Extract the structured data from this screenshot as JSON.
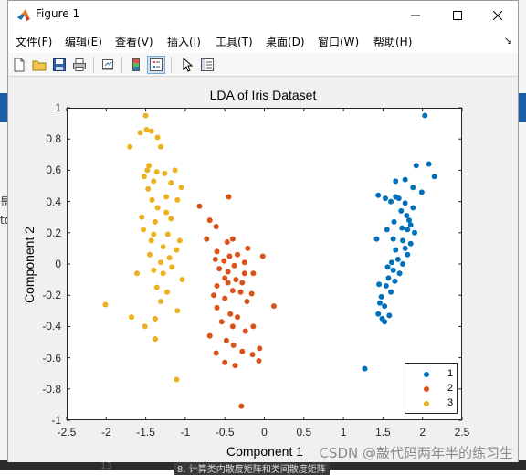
{
  "window": {
    "title": "Figure 1",
    "controls": {
      "minimize": "minimize",
      "maximize": "maximize",
      "close": "close"
    }
  },
  "menu": {
    "items": [
      "文件(F)",
      "编辑(E)",
      "查看(V)",
      "插入(I)",
      "工具(T)",
      "桌面(D)",
      "窗口(W)",
      "帮助(H)"
    ],
    "overflow": "↘"
  },
  "toolbar": {
    "tools": [
      "new-figure-icon",
      "open-file-icon",
      "save-icon",
      "print-icon",
      "link-plot-icon",
      "insert-colorbar-icon",
      "insert-legend-icon",
      "pointer-icon",
      "property-inspector-icon"
    ]
  },
  "background": {
    "left_text_1": "昰",
    "left_text_2": "to",
    "bottom_left": "13",
    "bottom_text": "8. 计算类内散度矩阵和类间散度矩阵"
  },
  "watermark": "CSDN @敲代码两年半的练习生",
  "colors": {
    "class1": "#0072BD",
    "class2": "#D95319",
    "class3": "#EDB120"
  },
  "chart_data": {
    "type": "scatter",
    "title": "LDA of Iris Dataset",
    "xlabel": "Component 1",
    "ylabel": "Component 2",
    "xlim": [
      -2.5,
      2.5
    ],
    "ylim": [
      -1,
      1
    ],
    "xticks": [
      "-2.5",
      "-2",
      "-1.5",
      "-1",
      "-0.5",
      "0",
      "0.5",
      "1",
      "1.5",
      "2",
      "2.5"
    ],
    "yticks": [
      "1",
      "0.8",
      "0.6",
      "0.4",
      "0.2",
      "0",
      "-0.2",
      "-0.4",
      "-0.6",
      "-0.8",
      "-1"
    ],
    "legend": {
      "position": "bottom-right",
      "entries": [
        "1",
        "2",
        "3"
      ]
    },
    "series": [
      {
        "name": "1",
        "color": "#0072BD",
        "points": [
          [
            2.03,
            0.95
          ],
          [
            1.92,
            0.63
          ],
          [
            2.08,
            0.64
          ],
          [
            2.15,
            0.56
          ],
          [
            1.78,
            0.54
          ],
          [
            1.66,
            0.53
          ],
          [
            1.88,
            0.49
          ],
          [
            1.44,
            0.44
          ],
          [
            1.66,
            0.43
          ],
          [
            1.7,
            0.42
          ],
          [
            1.53,
            0.42
          ],
          [
            1.99,
            0.46
          ],
          [
            1.6,
            0.4
          ],
          [
            1.78,
            0.39
          ],
          [
            1.88,
            0.36
          ],
          [
            1.73,
            0.34
          ],
          [
            1.8,
            0.31
          ],
          [
            1.83,
            0.28
          ],
          [
            1.64,
            0.27
          ],
          [
            1.85,
            0.25
          ],
          [
            1.74,
            0.23
          ],
          [
            1.55,
            0.22
          ],
          [
            1.81,
            0.22
          ],
          [
            1.9,
            0.2
          ],
          [
            1.42,
            0.16
          ],
          [
            1.63,
            0.16
          ],
          [
            1.75,
            0.15
          ],
          [
            1.85,
            0.13
          ],
          [
            1.78,
            0.1
          ],
          [
            1.66,
            0.09
          ],
          [
            1.81,
            0.06
          ],
          [
            1.69,
            0.03
          ],
          [
            1.61,
            0.01
          ],
          [
            1.75,
            0.0
          ],
          [
            1.56,
            -0.02
          ],
          [
            1.63,
            -0.04
          ],
          [
            1.71,
            -0.06
          ],
          [
            1.57,
            -0.09
          ],
          [
            1.65,
            -0.11
          ],
          [
            1.45,
            -0.13
          ],
          [
            1.54,
            -0.14
          ],
          [
            1.48,
            -0.21
          ],
          [
            1.6,
            -0.18
          ],
          [
            1.46,
            -0.25
          ],
          [
            1.52,
            -0.27
          ],
          [
            1.44,
            -0.32
          ],
          [
            1.58,
            -0.33
          ],
          [
            1.49,
            -0.35
          ],
          [
            1.52,
            -0.37
          ],
          [
            1.27,
            -0.67
          ]
        ]
      },
      {
        "name": "2",
        "color": "#D95319",
        "points": [
          [
            -0.45,
            0.43
          ],
          [
            -0.82,
            0.37
          ],
          [
            -0.69,
            0.28
          ],
          [
            -0.61,
            0.24
          ],
          [
            -0.73,
            0.16
          ],
          [
            -0.4,
            0.16
          ],
          [
            -0.47,
            0.14
          ],
          [
            -0.21,
            0.1
          ],
          [
            -0.6,
            0.08
          ],
          [
            -0.34,
            0.06
          ],
          [
            -0.44,
            0.05
          ],
          [
            -0.62,
            0.03
          ],
          [
            -0.51,
            0.02
          ],
          [
            -0.25,
            0.01
          ],
          [
            -0.02,
            0.05
          ],
          [
            -0.38,
            -0.01
          ],
          [
            -0.57,
            -0.03
          ],
          [
            -0.46,
            -0.05
          ],
          [
            -0.25,
            -0.06
          ],
          [
            -0.14,
            -0.06
          ],
          [
            -0.5,
            -0.09
          ],
          [
            -0.36,
            -0.1
          ],
          [
            -0.28,
            -0.12
          ],
          [
            -0.46,
            -0.12
          ],
          [
            -0.6,
            -0.14
          ],
          [
            -0.4,
            -0.17
          ],
          [
            -0.3,
            -0.18
          ],
          [
            -0.16,
            -0.19
          ],
          [
            -0.64,
            -0.2
          ],
          [
            -0.5,
            -0.22
          ],
          [
            -0.22,
            -0.24
          ],
          [
            0.12,
            -0.27
          ],
          [
            -0.6,
            -0.28
          ],
          [
            -0.43,
            -0.32
          ],
          [
            -0.34,
            -0.34
          ],
          [
            -0.54,
            -0.37
          ],
          [
            -0.4,
            -0.4
          ],
          [
            -0.24,
            -0.43
          ],
          [
            -0.14,
            -0.4
          ],
          [
            -0.69,
            -0.46
          ],
          [
            -0.48,
            -0.49
          ],
          [
            -0.39,
            -0.52
          ],
          [
            -0.06,
            -0.54
          ],
          [
            -0.61,
            -0.57
          ],
          [
            -0.28,
            -0.56
          ],
          [
            -0.15,
            -0.58
          ],
          [
            -0.5,
            -0.63
          ],
          [
            -0.07,
            -0.62
          ],
          [
            -0.37,
            -0.65
          ],
          [
            -0.29,
            -0.91
          ]
        ]
      },
      {
        "name": "3",
        "color": "#EDB120",
        "points": [
          [
            -1.5,
            0.95
          ],
          [
            -1.49,
            0.86
          ],
          [
            -1.43,
            0.85
          ],
          [
            -1.35,
            0.81
          ],
          [
            -1.57,
            0.84
          ],
          [
            -1.7,
            0.75
          ],
          [
            -1.31,
            0.75
          ],
          [
            -1.46,
            0.63
          ],
          [
            -1.36,
            0.59
          ],
          [
            -1.48,
            0.6
          ],
          [
            -1.26,
            0.58
          ],
          [
            -1.52,
            0.56
          ],
          [
            -1.13,
            0.6
          ],
          [
            -1.4,
            0.53
          ],
          [
            -1.18,
            0.52
          ],
          [
            -1.47,
            0.48
          ],
          [
            -1.05,
            0.49
          ],
          [
            -1.24,
            0.43
          ],
          [
            -1.42,
            0.41
          ],
          [
            -1.1,
            0.41
          ],
          [
            -1.35,
            0.36
          ],
          [
            -1.24,
            0.33
          ],
          [
            -1.55,
            0.3
          ],
          [
            -1.38,
            0.27
          ],
          [
            -1.18,
            0.29
          ],
          [
            -1.53,
            0.22
          ],
          [
            -1.4,
            0.19
          ],
          [
            -1.22,
            0.19
          ],
          [
            -1.43,
            0.15
          ],
          [
            -1.07,
            0.15
          ],
          [
            -1.28,
            0.11
          ],
          [
            -1.11,
            0.09
          ],
          [
            -1.45,
            0.06
          ],
          [
            -1.2,
            0.04
          ],
          [
            -1.31,
            0.01
          ],
          [
            -1.17,
            -0.02
          ],
          [
            -1.4,
            -0.04
          ],
          [
            -1.61,
            -0.06
          ],
          [
            -1.28,
            -0.06
          ],
          [
            -1.04,
            -0.1
          ],
          [
            -1.36,
            -0.15
          ],
          [
            -1.23,
            -0.18
          ],
          [
            -2.01,
            -0.26
          ],
          [
            -1.31,
            -0.24
          ],
          [
            -1.1,
            -0.3
          ],
          [
            -1.68,
            -0.34
          ],
          [
            -1.38,
            -0.35
          ],
          [
            -1.51,
            -0.4
          ],
          [
            -1.38,
            -0.48
          ],
          [
            -1.11,
            -0.74
          ]
        ]
      }
    ]
  }
}
